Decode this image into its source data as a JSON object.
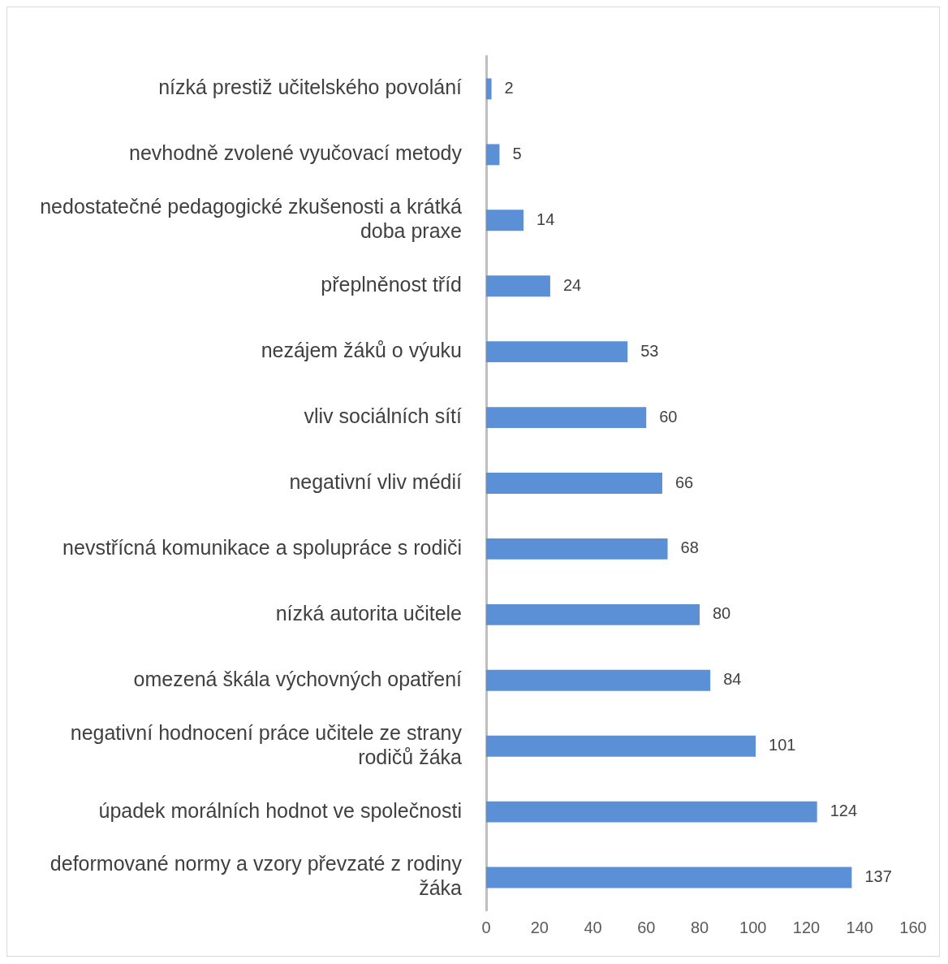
{
  "chart_data": {
    "type": "bar",
    "orientation": "horizontal",
    "categories": [
      "nízká prestiž učitelského povolání",
      "nevhodně zvolené vyučovací metody",
      "nedostatečné pedagogické zkušenosti a krátká doba praxe",
      "přeplněnost tříd",
      "nezájem žáků o výuku",
      "vliv sociálních sítí",
      "negativní vliv médií",
      "nevstřícná komunikace a spolupráce s rodiči",
      "nízká autorita učitele",
      "omezená škála výchovných opatření",
      "negativní hodnocení práce učitele ze strany rodičů žáka",
      "úpadek morálních hodnot ve společnosti",
      "deformované normy a vzory převzaté z rodiny žáka"
    ],
    "values": [
      2,
      5,
      14,
      24,
      53,
      60,
      66,
      68,
      80,
      84,
      101,
      124,
      137
    ],
    "color": "#5b8fd6",
    "xlim": [
      0,
      160
    ],
    "xticks": [
      0,
      20,
      40,
      60,
      80,
      100,
      120,
      140,
      160
    ],
    "data_labels": true,
    "grid": false,
    "legend": false
  }
}
